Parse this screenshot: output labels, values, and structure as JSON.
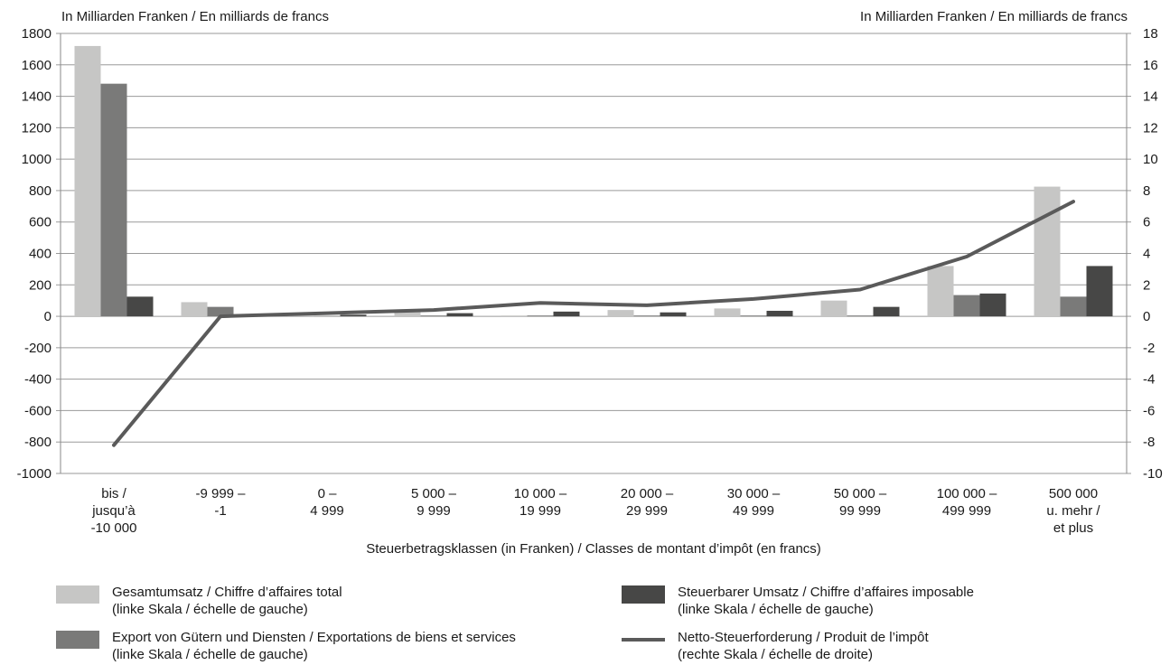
{
  "chart_data": {
    "type": "bar",
    "y_left_title": "In Milliarden Franken / En milliards de francs",
    "y_right_title": "In Milliarden Franken / En milliards de francs",
    "xlabel": "Steuerbetragsklassen (in Franken) / Classes de montant d’impôt (en francs)",
    "categories": [
      [
        "bis /",
        "jusqu’à",
        "-10 000"
      ],
      [
        "-9 999 –",
        "-1"
      ],
      [
        "0 –",
        "4 999"
      ],
      [
        "5 000 –",
        "9 999"
      ],
      [
        "10 000 –",
        "19 999"
      ],
      [
        "20 000 –",
        "29 999"
      ],
      [
        "30 000 –",
        "49 999"
      ],
      [
        "50 000 –",
        "99 999"
      ],
      [
        "100 000 –",
        "499 999"
      ],
      [
        "500 000",
        "u. mehr /",
        "et plus"
      ]
    ],
    "y_left": {
      "min": -1000,
      "max": 1800,
      "step": 200,
      "ticks": [
        "1800",
        "1600",
        "1400",
        "1200",
        "1000",
        "800",
        "600",
        "400",
        "200",
        "0",
        "-200",
        "-400",
        "-600",
        "-800",
        "-1000"
      ]
    },
    "y_right": {
      "min": -10,
      "max": 18,
      "step": 2,
      "ticks": [
        "18",
        "16",
        "14",
        "12",
        "10",
        "8",
        "6",
        "4",
        "2",
        "0",
        "-2",
        "-4",
        "-6",
        "-8",
        "-10"
      ]
    },
    "grid": true,
    "series": [
      {
        "name": "Gesamtumsatz / Chiffre d’affaires total",
        "axis": "left",
        "kind": "bar",
        "color": "#c6c6c5",
        "values": [
          1720,
          90,
          5,
          40,
          5,
          40,
          50,
          100,
          320,
          825
        ]
      },
      {
        "name": "Export von Gütern und Diensten / Exportations de biens et services",
        "axis": "left",
        "kind": "bar",
        "color": "#7a7a79",
        "values": [
          1480,
          60,
          2,
          5,
          5,
          5,
          5,
          5,
          135,
          125
        ]
      },
      {
        "name": "Steuerbarer Umsatz / Chiffre d’affaires imposable",
        "axis": "left",
        "kind": "bar",
        "color": "#474746",
        "values": [
          125,
          0,
          10,
          20,
          30,
          25,
          35,
          60,
          145,
          320
        ]
      },
      {
        "name": "Netto-Steuerforderung / Produit de l’impôt",
        "axis": "right",
        "kind": "line",
        "color": "#5a5a5a",
        "values": [
          -8.2,
          0.0,
          0.2,
          0.4,
          0.85,
          0.7,
          1.1,
          1.7,
          3.8,
          7.3
        ]
      }
    ],
    "legend": {
      "placement": "bottom",
      "items": [
        {
          "lines": [
            "Gesamtumsatz / Chiffre d’affaires total",
            "(linke Skala / échelle de gauche)"
          ],
          "kind": "swatch",
          "color": "#c6c6c5"
        },
        {
          "lines": [
            "Export von Gütern und Diensten / Exportations de biens et services",
            "(linke Skala / échelle de gauche)"
          ],
          "kind": "swatch",
          "color": "#7a7a79"
        },
        {
          "lines": [
            "Steuerbarer Umsatz / Chiffre d’affaires imposable",
            "(linke Skala / échelle de gauche)"
          ],
          "kind": "swatch",
          "color": "#474746"
        },
        {
          "lines": [
            "Netto-Steuerforderung / Produit de l’impôt",
            "(rechte Skala / échelle de droite)"
          ],
          "kind": "line",
          "color": "#5a5a5a"
        }
      ]
    }
  }
}
